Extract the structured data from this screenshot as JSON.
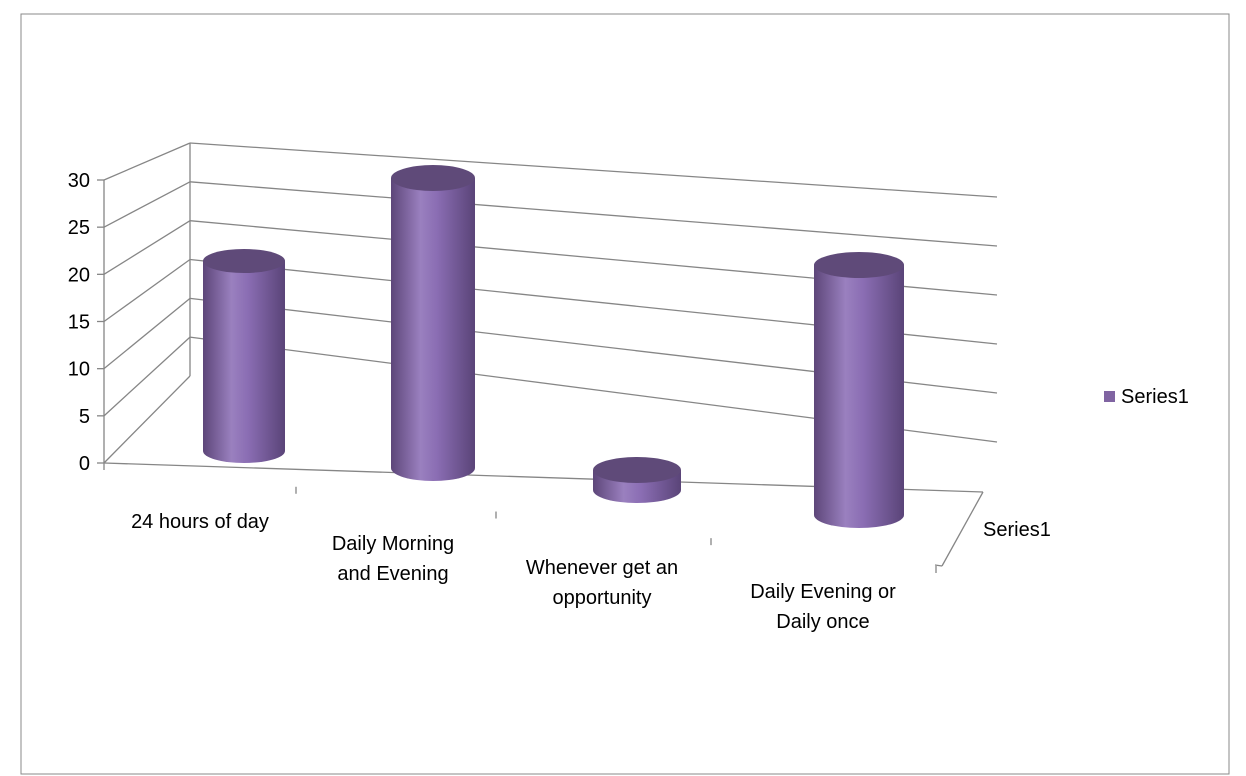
{
  "chart_data": {
    "type": "bar",
    "style": "3d-cylinder",
    "categories": [
      "24 hours of day",
      "Daily Morning and Evening",
      "Whenever get an opportunity",
      "Daily Evening or Daily once"
    ],
    "category_label_lines": [
      [
        "24 hours of day"
      ],
      [
        "Daily Morning",
        "and Evening"
      ],
      [
        "Whenever get an",
        "opportunity"
      ],
      [
        "Daily Evening or",
        "Daily once"
      ]
    ],
    "series": [
      {
        "name": "Series1",
        "values": [
          19,
          29,
          2,
          25
        ]
      }
    ],
    "depth_axis_label": "Series1",
    "yticks": [
      0,
      5,
      10,
      15,
      20,
      25,
      30
    ],
    "ylim": [
      0,
      30
    ],
    "grid": true,
    "legend": "right",
    "title": "",
    "xlabel": "",
    "ylabel": "",
    "colors": {
      "bar_body": "#8064A2",
      "bar_top": "#5F4A79",
      "grid": "#868686",
      "frame": "#888888"
    }
  }
}
